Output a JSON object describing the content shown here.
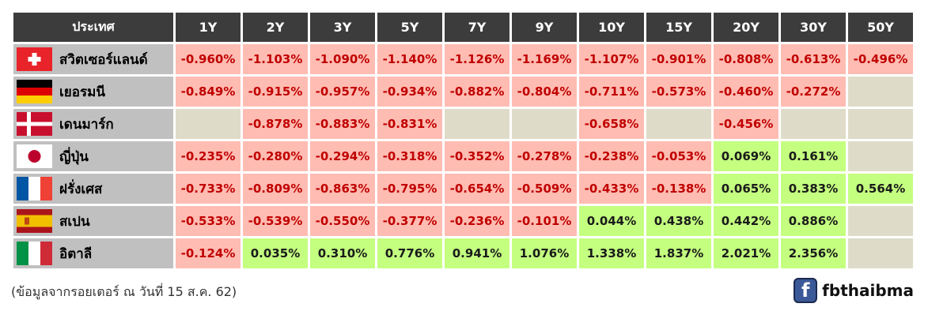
{
  "table": {
    "country_header": "ประเทศ",
    "tenors": [
      "1Y",
      "2Y",
      "3Y",
      "5Y",
      "7Y",
      "9Y",
      "10Y",
      "15Y",
      "20Y",
      "30Y",
      "50Y"
    ],
    "rows": [
      {
        "country": "สวิตเซอร์แลนด์",
        "flag": "switzerland-flag",
        "values": [
          "-0.960%",
          "-1.103%",
          "-1.090%",
          "-1.140%",
          "-1.126%",
          "-1.169%",
          "-1.107%",
          "-0.901%",
          "-0.808%",
          "-0.613%",
          "-0.496%"
        ]
      },
      {
        "country": "เยอรมนี",
        "flag": "germany-flag",
        "values": [
          "-0.849%",
          "-0.915%",
          "-0.957%",
          "-0.934%",
          "-0.882%",
          "-0.804%",
          "-0.711%",
          "-0.573%",
          "-0.460%",
          "-0.272%",
          ""
        ]
      },
      {
        "country": "เดนมาร์ก",
        "flag": "denmark-flag",
        "values": [
          "",
          "-0.878%",
          "-0.883%",
          "-0.831%",
          "",
          "",
          "-0.658%",
          "",
          "-0.456%",
          "",
          ""
        ]
      },
      {
        "country": "ญี่ปุ่น",
        "flag": "japan-flag",
        "values": [
          "-0.235%",
          "-0.280%",
          "-0.294%",
          "-0.318%",
          "-0.352%",
          "-0.278%",
          "-0.238%",
          "-0.053%",
          "0.069%",
          "0.161%",
          ""
        ]
      },
      {
        "country": "ฝรั่งเศส",
        "flag": "france-flag",
        "values": [
          "-0.733%",
          "-0.809%",
          "-0.863%",
          "-0.795%",
          "-0.654%",
          "-0.509%",
          "-0.433%",
          "-0.138%",
          "0.065%",
          "0.383%",
          "0.564%"
        ]
      },
      {
        "country": "สเปน",
        "flag": "spain-flag",
        "values": [
          "-0.533%",
          "-0.539%",
          "-0.550%",
          "-0.377%",
          "-0.236%",
          "-0.101%",
          "0.044%",
          "0.438%",
          "0.442%",
          "0.886%",
          ""
        ]
      },
      {
        "country": "อิตาลี",
        "flag": "italy-flag",
        "values": [
          "-0.124%",
          "0.035%",
          "0.310%",
          "0.776%",
          "0.941%",
          "1.076%",
          "1.338%",
          "1.837%",
          "2.021%",
          "2.356%",
          ""
        ]
      }
    ]
  },
  "colors": {
    "header_bg": "#3c3c3c",
    "country_bg": "#c0c0c0",
    "negative_bg": "#ffbcb2",
    "negative_text": "#c00000",
    "positive_bg": "#c4ff80",
    "empty_bg": "#dedbc8"
  },
  "footer": {
    "source": "(ข้อมูลจากรอยเตอร์ ณ วันที่ 15 ส.ค. 62)",
    "brand_icon": "facebook-icon",
    "brand_icon_glyph": "f",
    "brand": "fbthaibma"
  }
}
